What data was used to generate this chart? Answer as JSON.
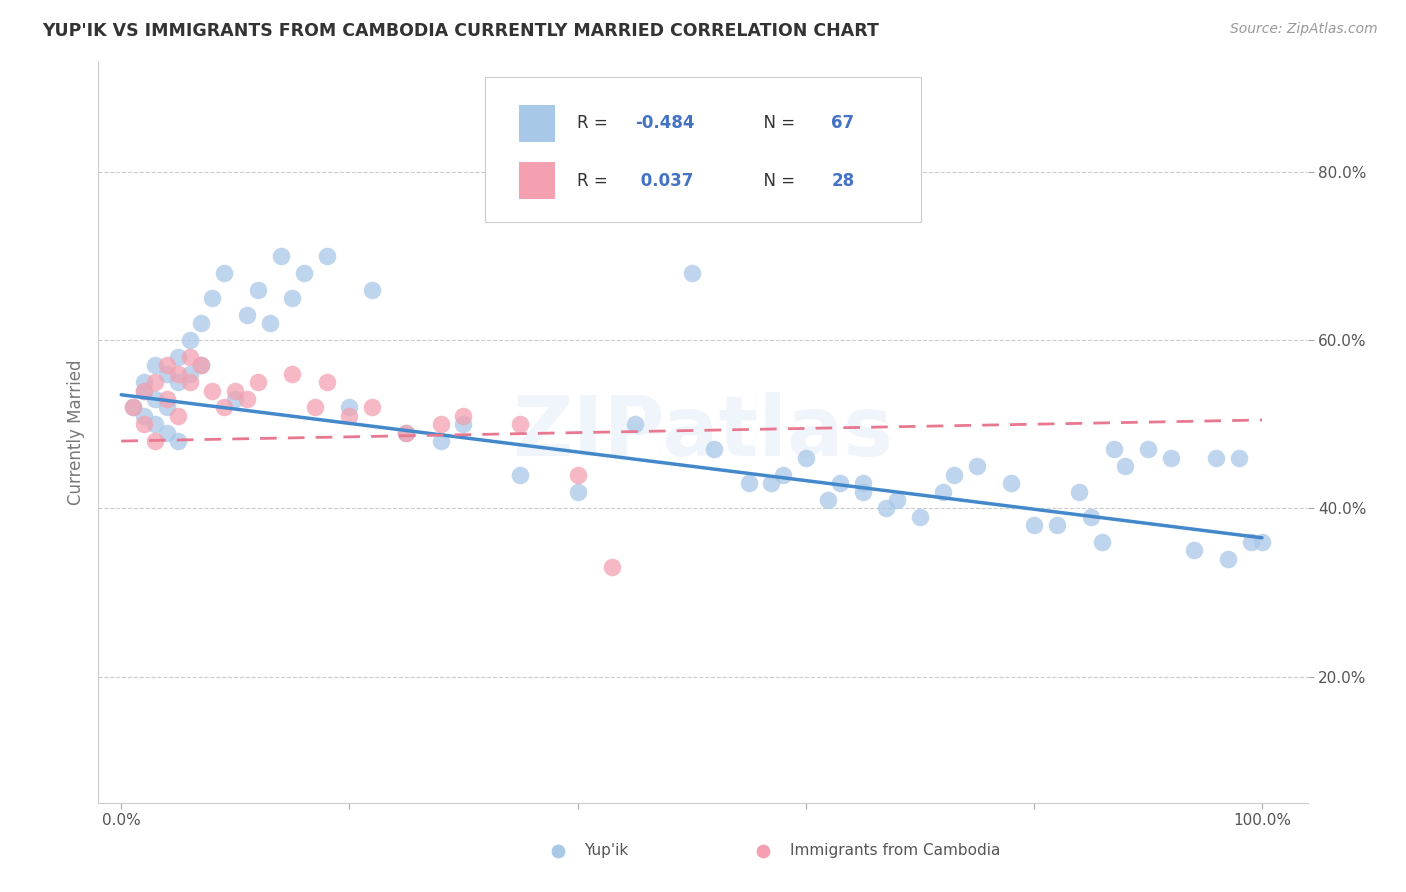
{
  "title": "YUP'IK VS IMMIGRANTS FROM CAMBODIA CURRENTLY MARRIED CORRELATION CHART",
  "source": "Source: ZipAtlas.com",
  "ylabel": "Currently Married",
  "color_blue": "#a8c8e8",
  "color_pink": "#f4a0b0",
  "color_blue_line": "#4488cc",
  "color_pink_line": "#e87890",
  "watermark": "ZIPatlas",
  "blue_x": [
    0.01,
    0.02,
    0.02,
    0.02,
    0.03,
    0.03,
    0.03,
    0.04,
    0.04,
    0.04,
    0.05,
    0.05,
    0.05,
    0.06,
    0.06,
    0.07,
    0.07,
    0.08,
    0.09,
    0.1,
    0.11,
    0.12,
    0.13,
    0.14,
    0.15,
    0.16,
    0.18,
    0.2,
    0.22,
    0.25,
    0.28,
    0.3,
    0.35,
    0.4,
    0.45,
    0.5,
    0.52,
    0.55,
    0.57,
    0.58,
    0.6,
    0.62,
    0.63,
    0.65,
    0.65,
    0.67,
    0.68,
    0.7,
    0.72,
    0.73,
    0.75,
    0.78,
    0.8,
    0.82,
    0.84,
    0.85,
    0.86,
    0.87,
    0.88,
    0.9,
    0.92,
    0.94,
    0.96,
    0.97,
    0.98,
    0.99,
    1.0
  ],
  "blue_y": [
    0.52,
    0.54,
    0.51,
    0.55,
    0.53,
    0.57,
    0.5,
    0.56,
    0.52,
    0.49,
    0.58,
    0.55,
    0.48,
    0.6,
    0.56,
    0.62,
    0.57,
    0.65,
    0.68,
    0.53,
    0.63,
    0.66,
    0.62,
    0.7,
    0.65,
    0.68,
    0.7,
    0.52,
    0.66,
    0.49,
    0.48,
    0.5,
    0.44,
    0.42,
    0.5,
    0.68,
    0.47,
    0.43,
    0.43,
    0.44,
    0.46,
    0.41,
    0.43,
    0.42,
    0.43,
    0.4,
    0.41,
    0.39,
    0.42,
    0.44,
    0.45,
    0.43,
    0.38,
    0.38,
    0.42,
    0.39,
    0.36,
    0.47,
    0.45,
    0.47,
    0.46,
    0.35,
    0.46,
    0.34,
    0.46,
    0.36,
    0.36
  ],
  "pink_x": [
    0.01,
    0.02,
    0.02,
    0.03,
    0.03,
    0.04,
    0.04,
    0.05,
    0.05,
    0.06,
    0.06,
    0.07,
    0.08,
    0.09,
    0.1,
    0.11,
    0.12,
    0.15,
    0.17,
    0.18,
    0.2,
    0.22,
    0.25,
    0.28,
    0.3,
    0.35,
    0.4,
    0.43
  ],
  "pink_y": [
    0.52,
    0.54,
    0.5,
    0.55,
    0.48,
    0.57,
    0.53,
    0.56,
    0.51,
    0.58,
    0.55,
    0.57,
    0.54,
    0.52,
    0.54,
    0.53,
    0.55,
    0.56,
    0.52,
    0.55,
    0.51,
    0.52,
    0.49,
    0.5,
    0.51,
    0.5,
    0.44,
    0.33
  ]
}
